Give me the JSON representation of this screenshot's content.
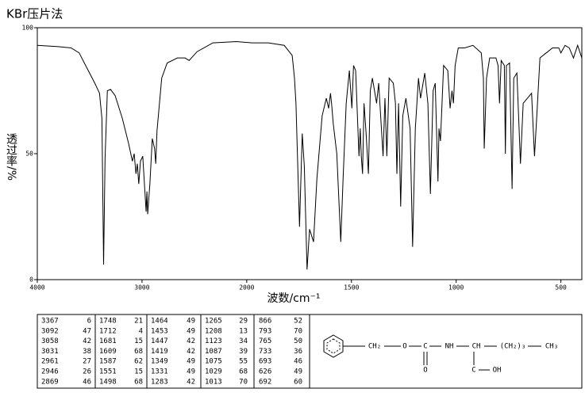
{
  "chart_data": {
    "type": "line",
    "title": "KBr压片法",
    "x_label": "波数/cm⁻¹",
    "y_label": "透过率/%",
    "xlim": [
      4000,
      400
    ],
    "xticks": [
      4000,
      3000,
      2000,
      1500,
      1000,
      500
    ],
    "ylim": [
      0,
      100
    ],
    "yticks": [
      0,
      50,
      100
    ],
    "color": "#000000",
    "x": [
      4000,
      3800,
      3677,
      3600,
      3526,
      3451,
      3406,
      3383,
      3367,
      3353,
      3331,
      3300,
      3256,
      3188,
      3128,
      3092,
      3075,
      3058,
      3045,
      3031,
      3015,
      2993,
      2961,
      2953,
      2946,
      2925,
      2902,
      2880,
      2869,
      2857,
      2812,
      2760,
      2662,
      2590,
      2550,
      2474,
      2323,
      2100,
      1973,
      1897,
      1821,
      1783,
      1772,
      1765,
      1748,
      1735,
      1725,
      1712,
      1700,
      1681,
      1665,
      1640,
      1620,
      1609,
      1600,
      1595,
      1587,
      1570,
      1551,
      1540,
      1525,
      1510,
      1498,
      1490,
      1480,
      1464,
      1458,
      1453,
      1447,
      1440,
      1430,
      1419,
      1410,
      1400,
      1390,
      1380,
      1370,
      1349,
      1340,
      1331,
      1320,
      1300,
      1290,
      1283,
      1275,
      1265,
      1255,
      1240,
      1220,
      1208,
      1195,
      1180,
      1170,
      1150,
      1135,
      1123,
      1110,
      1100,
      1087,
      1082,
      1075,
      1060,
      1040,
      1029,
      1020,
      1013,
      1005,
      990,
      960,
      920,
      880,
      870,
      866,
      855,
      840,
      810,
      800,
      793,
      785,
      770,
      765,
      760,
      745,
      733,
      725,
      710,
      693,
      680,
      660,
      640,
      626,
      615,
      600,
      570,
      540,
      510,
      500,
      480,
      460,
      440,
      420,
      400
    ],
    "values": [
      93,
      92.5,
      92,
      90,
      84,
      78,
      74,
      64,
      6,
      48,
      75,
      75.5,
      73,
      64,
      54,
      47,
      50,
      42,
      46,
      38,
      47,
      49,
      27,
      35,
      26,
      38,
      56,
      52,
      46,
      59,
      80,
      86,
      88,
      88,
      87,
      90.5,
      94,
      94.5,
      94,
      94,
      93,
      89,
      80,
      70,
      21,
      58,
      45,
      4,
      20,
      15,
      40,
      65,
      72,
      68,
      74,
      70,
      62,
      50,
      15,
      40,
      70,
      83,
      68,
      85,
      83,
      49,
      60,
      49,
      42,
      70,
      58,
      42,
      75,
      80,
      75,
      70,
      78,
      49,
      72,
      49,
      80,
      78,
      70,
      42,
      70,
      29,
      65,
      72,
      60,
      13,
      60,
      80,
      72,
      82,
      70,
      34,
      75,
      78,
      39,
      60,
      55,
      85,
      83,
      68,
      75,
      70,
      85,
      92,
      92,
      93,
      90,
      80,
      52,
      80,
      88,
      88,
      85,
      70,
      87,
      85,
      50,
      85,
      86,
      36,
      80,
      82,
      46,
      70,
      72,
      74,
      49,
      65,
      88,
      90,
      92,
      92,
      90,
      93,
      92,
      88,
      93,
      88
    ]
  },
  "peak_table": {
    "wavenumbers": [
      3367,
      3092,
      3058,
      3031,
      2961,
      2946,
      2869,
      1748,
      1712,
      1681,
      1609,
      1587,
      1551,
      1498,
      1464,
      1453,
      1447,
      1419,
      1349,
      1331,
      1283,
      1265,
      1208,
      1123,
      1087,
      1075,
      1029,
      1013,
      866,
      793,
      765,
      733,
      693,
      626,
      692
    ],
    "transmittance": [
      6,
      47,
      42,
      38,
      27,
      26,
      46,
      21,
      4,
      15,
      68,
      62,
      15,
      68,
      49,
      49,
      42,
      42,
      49,
      49,
      42,
      29,
      13,
      34,
      39,
      55,
      68,
      70,
      52,
      70,
      50,
      36,
      46,
      49,
      60
    ]
  },
  "structure": {
    "labels": [
      "CH₂",
      "O",
      "C",
      "NH",
      "CH",
      "(CH₂)₃",
      "CH₃",
      "O",
      "C",
      "OH"
    ]
  }
}
